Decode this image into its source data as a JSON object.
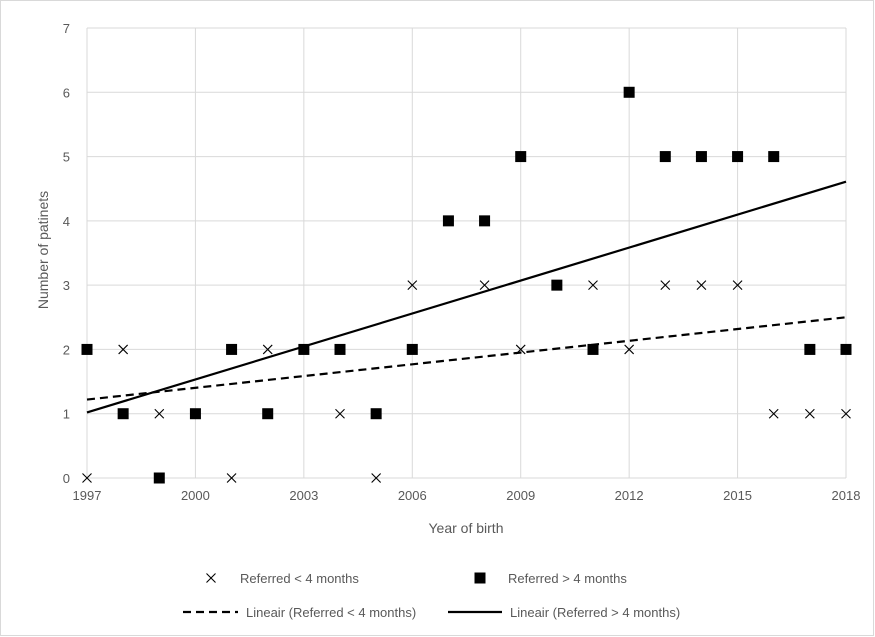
{
  "chart_data": {
    "type": "scatter",
    "title": "",
    "xlabel": "Year of birth",
    "ylabel": "Number of patinets",
    "xlim": [
      1997,
      2018
    ],
    "ylim": [
      0,
      7
    ],
    "xticks": [
      1997,
      2000,
      2003,
      2006,
      2009,
      2012,
      2015,
      2018
    ],
    "yticks": [
      0,
      1,
      2,
      3,
      4,
      5,
      6,
      7
    ],
    "grid": {
      "horizontal": true,
      "vertical": true
    },
    "legend_position": "bottom",
    "series": [
      {
        "name": "Referred < 4 months",
        "marker": "x",
        "color": "#000000",
        "x": [
          1997,
          1998,
          1999,
          2000,
          2001,
          2002,
          2003,
          2004,
          2005,
          2006,
          2007,
          2008,
          2009,
          2010,
          2011,
          2012,
          2013,
          2014,
          2015,
          2016,
          2017,
          2018
        ],
        "y": [
          0,
          2,
          1,
          1,
          0,
          2,
          2,
          1,
          0,
          3,
          4,
          3,
          2,
          3,
          3,
          2,
          3,
          3,
          3,
          1,
          1,
          1
        ]
      },
      {
        "name": "Referred > 4 months",
        "marker": "square",
        "color": "#000000",
        "x": [
          1997,
          1998,
          1999,
          2000,
          2001,
          2002,
          2003,
          2004,
          2005,
          2006,
          2007,
          2008,
          2009,
          2010,
          2011,
          2012,
          2013,
          2014,
          2015,
          2016,
          2017,
          2018
        ],
        "y": [
          2,
          1,
          0,
          1,
          2,
          1,
          2,
          2,
          1,
          2,
          4,
          4,
          5,
          3,
          2,
          6,
          5,
          5,
          5,
          5,
          2,
          2
        ]
      }
    ],
    "trendlines": [
      {
        "name": "Lineair (Referred < 4 months)",
        "style": "dashed",
        "color": "#000000",
        "x": [
          1997,
          2018
        ],
        "y": [
          1.22,
          2.5
        ]
      },
      {
        "name": "Lineair (Referred > 4 months)",
        "style": "solid",
        "color": "#000000",
        "x": [
          1997,
          2018
        ],
        "y": [
          1.02,
          4.61
        ]
      }
    ]
  }
}
